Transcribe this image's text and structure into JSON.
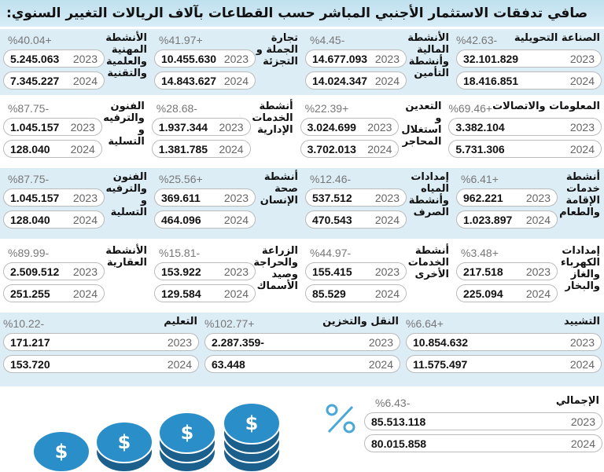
{
  "title": "صافي تدفقات الاستثمار الأجنبي المباشر حسب القطاعات بآلاف الريالات التغيير السنوي:",
  "rows": [
    {
      "cells": [
        {
          "label": "الصناعة التحويلية",
          "pct": "%42.63-",
          "wide": true,
          "v2023": "32.101.829",
          "v2024": "18.416.851"
        },
        {
          "label": "الأنشطة المالية وأنشطة التأمين",
          "pct": "%4.45-",
          "v2023": "14.677.093",
          "v2024": "14.024.347"
        },
        {
          "label": "تجارة الجملة و التجزئة",
          "pct": "%41.97+",
          "v2023": "10.455.630",
          "v2024": "14.843.627"
        },
        {
          "label": "الأنشطة المهنية والعلمية والتقنية",
          "pct": "%40.04+",
          "v2023": "5.245.063",
          "v2024": "7.345.227"
        }
      ]
    },
    {
      "cells": [
        {
          "label": "المعلومات والاتصالات",
          "pct": "%69.46+",
          "wide": true,
          "v2023": "3.382.104",
          "v2024": "5.731.306"
        },
        {
          "label": "التعدين و استغلال المحاجر",
          "pct": "%22.39+",
          "v2023": "3.024.699",
          "v2024": "3.702.013"
        },
        {
          "label": "أنشطة الخدمات الإدارية",
          "pct": "%28.68-",
          "v2023": "1.937.344",
          "v2024": "1.381.785"
        },
        {
          "label": "الفنون والترفيه و التسلية",
          "pct": "%87.75-",
          "v2023": "1.045.157",
          "v2024": "128.040"
        }
      ]
    },
    {
      "cells": [
        {
          "label": "أنشطة خدمات الإقامة والطعام",
          "pct": "%6.41+",
          "v2023": "962.221",
          "v2024": "1.023.897"
        },
        {
          "label": "إمدادات المياه وأنشطة الصرف",
          "pct": "%12.46-",
          "v2023": "537.512",
          "v2024": "470.543"
        },
        {
          "label": "أنشطة صحة الإنسان",
          "pct": "%25.56+",
          "v2023": "369.611",
          "v2024": "464.096"
        },
        {
          "label": "الفنون والترفيه و التسلية",
          "pct": "%87.75-",
          "v2023": "1.045.157",
          "v2024": "128.040"
        }
      ]
    },
    {
      "cells": [
        {
          "label": "إمدادات الكهرباء والغاز والبخار",
          "pct": "%3.48+",
          "v2023": "217.518",
          "v2024": "225.094"
        },
        {
          "label": "أنشطة الخدمات الأخرى",
          "pct": "%44.97-",
          "v2023": "155.415",
          "v2024": "85.529"
        },
        {
          "label": "الزراعة والحراجة وصيد الأسماك",
          "pct": "%15.81-",
          "v2023": "153.922",
          "v2024": "129.584"
        },
        {
          "label": "الأنشطة العقارية",
          "pct": "%89.99-",
          "v2023": "2.509.512",
          "v2024": "251.255"
        }
      ]
    },
    {
      "cells": [
        {
          "label": "التشييد",
          "pct": "%6.64+",
          "wide": true,
          "v2023": "10.854.632",
          "v2024": "11.575.497"
        },
        {
          "label": "النقل والتخزين",
          "pct": "%102.77+",
          "wide": true,
          "v2023": "2.287.359-",
          "v2024": "63.448"
        },
        {
          "label": "التعليم",
          "pct": "%10.22-",
          "wide": true,
          "v2023": "171.217",
          "v2024": "153.720"
        }
      ]
    }
  ],
  "years": [
    "2023",
    "2024"
  ],
  "total": {
    "label": "الإجمالي",
    "pct": "%6.43-",
    "v2023": "85.513.118",
    "v2024": "80.015.858"
  },
  "colors": {
    "row_blue": "#dcedf6",
    "coin": "#2a8fc9",
    "coin_dark": "#1b5f8c"
  },
  "icons": [
    "coin-stack-icon",
    "percent-icon"
  ]
}
